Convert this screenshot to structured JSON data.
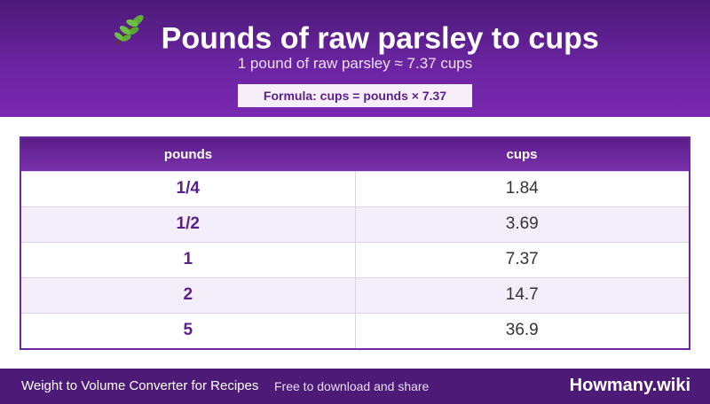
{
  "header": {
    "icon": "herb-leaf-icon",
    "title": "Pounds of raw parsley to cups",
    "subtitle": "1 pound of raw parsley ≈ 7.37 cups",
    "formula": "Formula: cups = pounds × 7.37"
  },
  "table": {
    "columns": [
      "pounds",
      "cups"
    ],
    "rows": [
      {
        "pounds": "1/4",
        "cups": "1.84"
      },
      {
        "pounds": "1/2",
        "cups": "3.69"
      },
      {
        "pounds": "1",
        "cups": "7.37"
      },
      {
        "pounds": "2",
        "cups": "14.7"
      },
      {
        "pounds": "5",
        "cups": "36.9"
      }
    ]
  },
  "footer": {
    "left": "Weight to Volume Converter for Recipes",
    "middle": "Free to download and share",
    "brand": "Howmany.wiki"
  },
  "colors": {
    "header_purple": "#6a24a0",
    "footer_purple": "#4d1a78",
    "accent_text": "#5a1f8c"
  }
}
